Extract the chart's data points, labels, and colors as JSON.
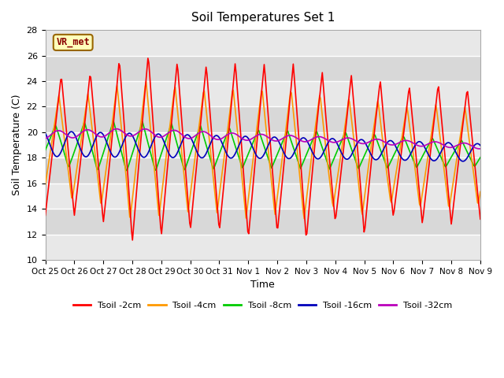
{
  "title": "Soil Temperatures Set 1",
  "xlabel": "Time",
  "ylabel": "Soil Temperature (C)",
  "ylim": [
    10,
    28
  ],
  "yticks": [
    10,
    12,
    14,
    16,
    18,
    20,
    22,
    24,
    26,
    28
  ],
  "annotation": "VR_met",
  "x_labels": [
    "Oct 25",
    "Oct 26",
    "Oct 27",
    "Oct 28",
    "Oct 29",
    "Oct 30",
    "Oct 31",
    "Nov 1",
    "Nov 2",
    "Nov 3",
    "Nov 4",
    "Nov 5",
    "Nov 6",
    "Nov 7",
    "Nov 8",
    "Nov 9"
  ],
  "colors": {
    "Tsoil -2cm": "#ff0000",
    "Tsoil -4cm": "#ff9900",
    "Tsoil -8cm": "#00cc00",
    "Tsoil -16cm": "#0000bb",
    "Tsoil -32cm": "#bb00bb"
  },
  "band_colors": [
    "#e8e8e8",
    "#d8d8d8"
  ],
  "background_fig": "#ffffff",
  "grid_color": "#ffffff",
  "linewidth": 1.2,
  "n_points": 480,
  "days": 15
}
